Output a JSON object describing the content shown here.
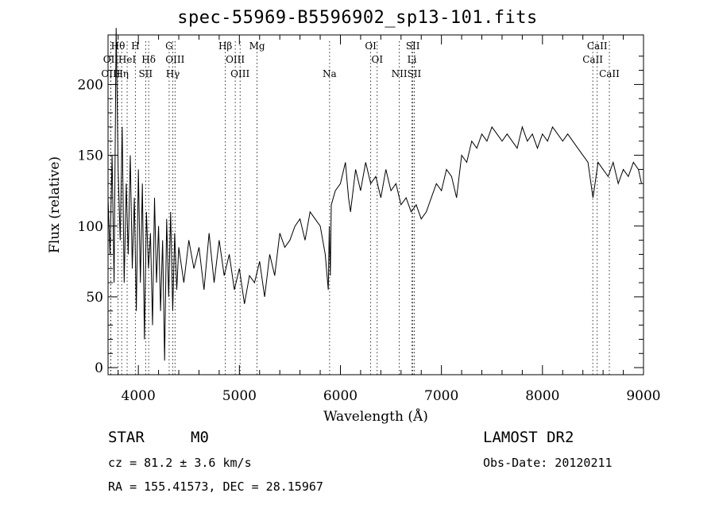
{
  "title": "spec-55969-B5596902_sp13-101.fits",
  "info": {
    "obj_type": "STAR",
    "spec_type": "M0",
    "survey": "LAMOST DR2",
    "cz": "cz = 81.2 ± 3.6 km/s",
    "obs_date": "Obs-Date: 20120211",
    "coords": "RA = 155.41573, DEC =  28.15967"
  },
  "chart_data": {
    "type": "line",
    "xlabel": "Wavelength (Å)",
    "ylabel": "Flux (relative)",
    "xlim": [
      3700,
      9000
    ],
    "ylim": [
      -5,
      235
    ],
    "xticks": [
      4000,
      5000,
      6000,
      7000,
      8000,
      9000
    ],
    "yticks": [
      0,
      50,
      100,
      150,
      200
    ],
    "series": [
      {
        "x": [
          3700,
          3720,
          3740,
          3760,
          3780,
          3800,
          3820,
          3840,
          3860,
          3880,
          3900,
          3920,
          3940,
          3960,
          3980,
          4000,
          4020,
          4040,
          4060,
          4080,
          4100,
          4120,
          4140,
          4160,
          4180,
          4200,
          4220,
          4240,
          4260,
          4280,
          4300,
          4320,
          4340,
          4360,
          4380,
          4400,
          4450,
          4500,
          4550,
          4600,
          4650,
          4700,
          4750,
          4800,
          4850,
          4900,
          4950,
          5000,
          5050,
          5100,
          5150,
          5200,
          5250,
          5300,
          5350,
          5400,
          5450,
          5500,
          5550,
          5600,
          5650,
          5700,
          5750,
          5800,
          5850,
          5880,
          5890,
          5900,
          5910,
          5950,
          6000,
          6050,
          6080,
          6100,
          6150,
          6200,
          6250,
          6300,
          6350,
          6400,
          6450,
          6500,
          6550,
          6600,
          6650,
          6700,
          6750,
          6800,
          6850,
          6900,
          6950,
          7000,
          7050,
          7100,
          7150,
          7200,
          7250,
          7300,
          7350,
          7400,
          7450,
          7500,
          7550,
          7600,
          7650,
          7700,
          7750,
          7800,
          7850,
          7900,
          7950,
          8000,
          8050,
          8100,
          8150,
          8200,
          8250,
          8300,
          8350,
          8400,
          8450,
          8480,
          8500,
          8520,
          8550,
          8600,
          8650,
          8700,
          8750,
          8800,
          8850,
          8900,
          8950,
          8980
        ],
        "y": [
          120,
          80,
          150,
          60,
          240,
          140,
          90,
          170,
          60,
          130,
          80,
          150,
          70,
          120,
          40,
          140,
          60,
          130,
          20,
          110,
          70,
          95,
          30,
          120,
          60,
          100,
          40,
          90,
          5,
          105,
          50,
          110,
          40,
          95,
          55,
          85,
          60,
          90,
          70,
          85,
          55,
          95,
          60,
          90,
          65,
          80,
          55,
          70,
          45,
          65,
          60,
          75,
          50,
          80,
          65,
          95,
          85,
          90,
          100,
          105,
          90,
          110,
          105,
          100,
          80,
          55,
          100,
          65,
          115,
          125,
          130,
          145,
          120,
          110,
          140,
          125,
          145,
          130,
          135,
          120,
          140,
          125,
          130,
          115,
          120,
          110,
          115,
          105,
          110,
          120,
          130,
          125,
          140,
          135,
          120,
          150,
          145,
          160,
          155,
          165,
          160,
          170,
          165,
          160,
          165,
          160,
          155,
          170,
          160,
          165,
          155,
          165,
          160,
          170,
          165,
          160,
          165,
          160,
          155,
          150,
          145,
          130,
          120,
          130,
          145,
          140,
          135,
          145,
          130,
          140,
          135,
          145,
          140,
          130
        ],
        "color": "#000000"
      }
    ],
    "lines": [
      {
        "label": "Hθ",
        "x": 3798,
        "row": 0
      },
      {
        "label": "OII",
        "x": 3727,
        "row": 1
      },
      {
        "label": "OIII",
        "x": 3727,
        "row": 2
      },
      {
        "label": "H",
        "x": 3970,
        "row": 0
      },
      {
        "label": "HeI",
        "x": 3889,
        "row": 1
      },
      {
        "label": "Hη",
        "x": 3835,
        "row": 2
      },
      {
        "label": "Hδ",
        "x": 4102,
        "row": 1
      },
      {
        "label": "SII",
        "x": 4072,
        "row": 2
      },
      {
        "label": "G",
        "x": 4305,
        "row": 0
      },
      {
        "label": "OIII",
        "x": 4363,
        "row": 1
      },
      {
        "label": "Hγ",
        "x": 4341,
        "row": 2
      },
      {
        "label": "Hβ",
        "x": 4861,
        "row": 0
      },
      {
        "label": "OIII",
        "x": 4959,
        "row": 1
      },
      {
        "label": "OIII",
        "x": 5007,
        "row": 2
      },
      {
        "label": "Mg",
        "x": 5175,
        "row": 0
      },
      {
        "label": "Na",
        "x": 5893,
        "row": 2
      },
      {
        "label": "OI",
        "x": 6300,
        "row": 0
      },
      {
        "label": "OI",
        "x": 6364,
        "row": 1
      },
      {
        "label": "SII",
        "x": 6717,
        "row": 0
      },
      {
        "label": "Li",
        "x": 6708,
        "row": 1
      },
      {
        "label": "NII",
        "x": 6583,
        "row": 2
      },
      {
        "label": "SII",
        "x": 6731,
        "row": 2
      },
      {
        "label": "CaII",
        "x": 8542,
        "row": 0
      },
      {
        "label": "CaII",
        "x": 8498,
        "row": 1
      },
      {
        "label": "CaII",
        "x": 8662,
        "row": 2
      }
    ]
  }
}
